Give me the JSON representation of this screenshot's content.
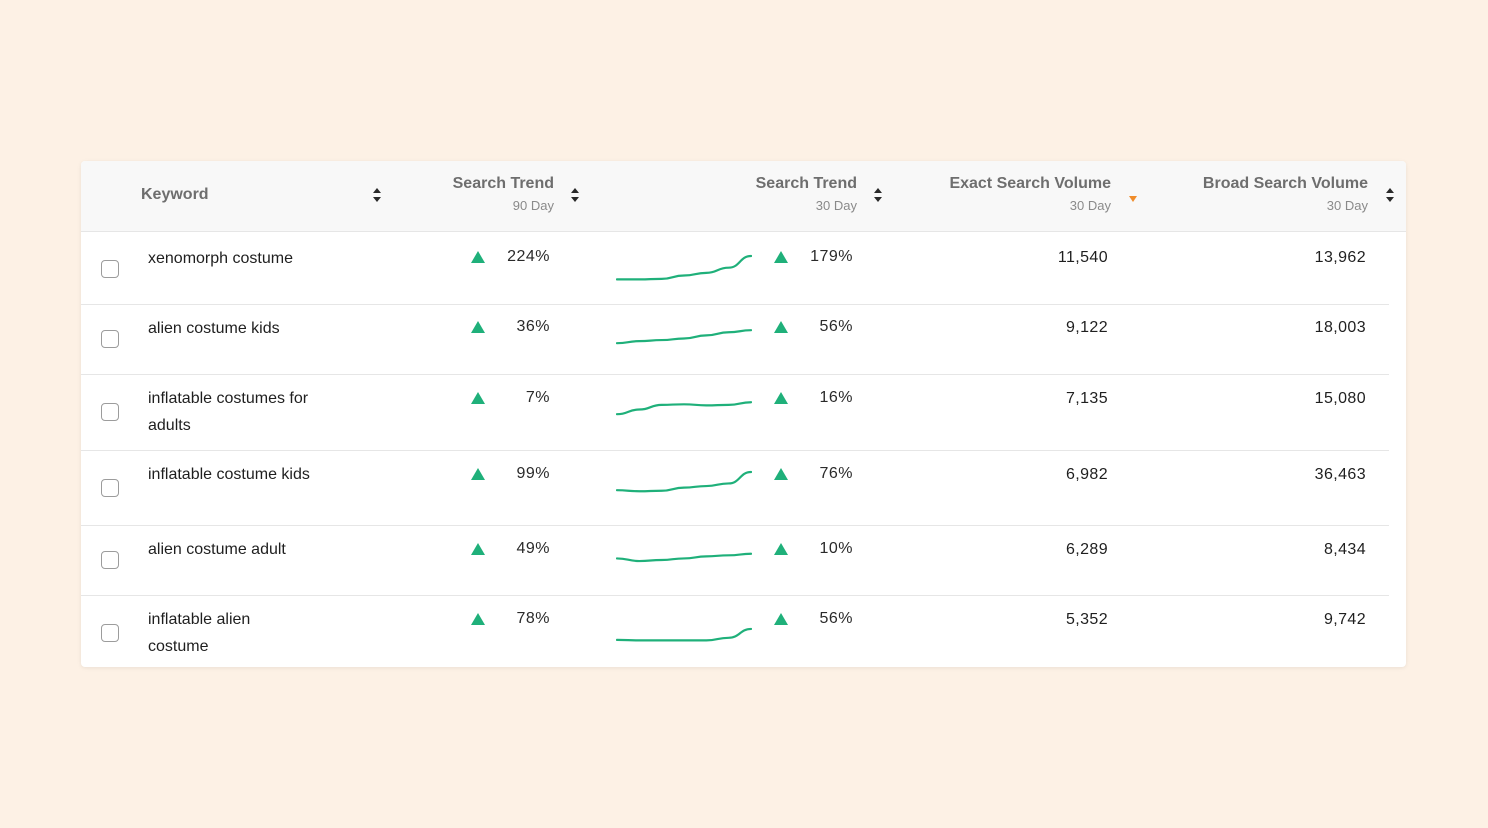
{
  "colors": {
    "background": "#fdf1e5",
    "trend_up": "#1fb07a",
    "sort_active": "#f08c2a"
  },
  "header": {
    "keyword": "Keyword",
    "trend90_title": "Search Trend",
    "trend90_sub": "90 Day",
    "trend30_title": "Search Trend",
    "trend30_sub": "30 Day",
    "exact_title": "Exact Search Volume",
    "exact_sub": "30 Day",
    "broad_title": "Broad Search Volume",
    "broad_sub": "30 Day"
  },
  "sort": {
    "active_column": "exact_search_volume",
    "direction": "descending"
  },
  "rows": [
    {
      "keyword": "xenomorph costume",
      "trend90": "224%",
      "trend30": "179%",
      "exact": "11,540",
      "broad": "13,962",
      "trend90_dir": "up",
      "trend30_dir": "up",
      "spark": [
        1,
        1,
        1.2,
        2.5,
        3.5,
        5.5,
        10
      ]
    },
    {
      "keyword": "alien costume kids",
      "trend90": "36%",
      "trend30": "56%",
      "exact": "9,122",
      "broad": "18,003",
      "trend90_dir": "up",
      "trend30_dir": "up",
      "spark": [
        3,
        3.8,
        4.2,
        4.8,
        6,
        7.2,
        8
      ]
    },
    {
      "keyword": "inflatable costumes for adults",
      "trend90": "7%",
      "trend30": "16%",
      "exact": "7,135",
      "broad": "15,080",
      "trend90_dir": "up",
      "trend30_dir": "up",
      "spark": [
        3,
        4.8,
        6.6,
        6.8,
        6.4,
        6.6,
        7.6
      ]
    },
    {
      "keyword": "inflatable costume kids",
      "trend90": "99%",
      "trend30": "76%",
      "exact": "6,982",
      "broad": "36,463",
      "trend90_dir": "up",
      "trend30_dir": "up",
      "spark": [
        3,
        2.6,
        2.8,
        4,
        4.6,
        5.6,
        10
      ]
    },
    {
      "keyword": "alien costume adult",
      "trend90": "49%",
      "trend30": "10%",
      "exact": "6,289",
      "broad": "8,434",
      "trend90_dir": "up",
      "trend30_dir": "up",
      "spark": [
        5.6,
        4.6,
        5,
        5.6,
        6.4,
        6.8,
        7.4
      ]
    },
    {
      "keyword": "inflatable alien costume",
      "trend90": "78%",
      "trend30": "56%",
      "exact": "5,352",
      "broad": "9,742",
      "trend90_dir": "up",
      "trend30_dir": "up",
      "spark": [
        1.2,
        1,
        1,
        1,
        1,
        2,
        5.4
      ]
    }
  ]
}
